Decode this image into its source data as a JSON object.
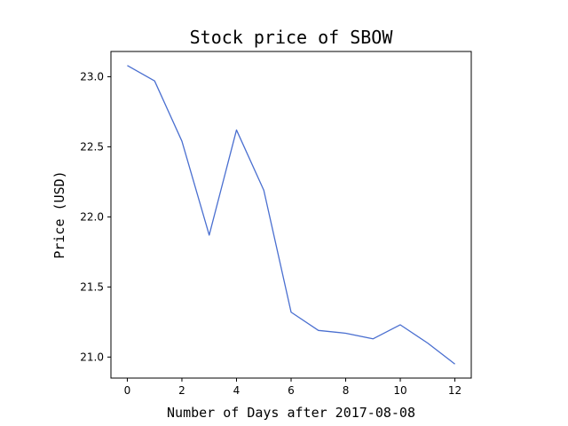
{
  "chart_data": {
    "type": "line",
    "title": "Stock price of SBOW",
    "xlabel": "Number of Days after 2017-08-08",
    "ylabel": "Price (USD)",
    "xlim": [
      -0.6,
      12.6
    ],
    "ylim": [
      20.85,
      23.18
    ],
    "xticks": [
      0,
      2,
      4,
      6,
      8,
      10,
      12
    ],
    "yticks": [
      21.0,
      21.5,
      22.0,
      22.5,
      23.0
    ],
    "ytick_labels": [
      "21.0",
      "21.5",
      "22.0",
      "22.5",
      "23.0"
    ],
    "grid": false,
    "series": [
      {
        "color": "#4a6fd0",
        "x": [
          0,
          1,
          2,
          3,
          4,
          5,
          6,
          7,
          8,
          9,
          10,
          11,
          12
        ],
        "y": [
          23.08,
          22.97,
          22.54,
          21.87,
          22.62,
          22.19,
          21.32,
          21.19,
          21.17,
          21.13,
          21.23,
          21.1,
          20.95
        ]
      }
    ]
  }
}
